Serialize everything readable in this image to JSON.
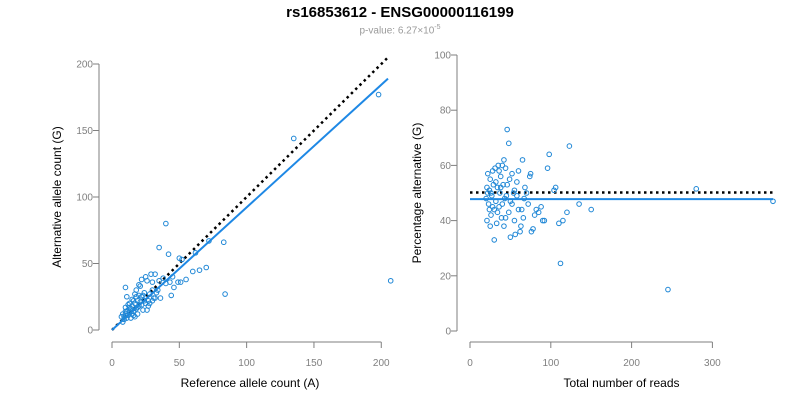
{
  "title": "rs16853612 - ENSG00000116199",
  "subtitle": {
    "prefix": "p-value: ",
    "mantissa": "6.27",
    "times": "×",
    "base": "10",
    "exponent": "-5"
  },
  "chart_data": [
    {
      "type": "scatter",
      "name": "allele-count-scatter",
      "xlabel": "Reference allele count (A)",
      "ylabel": "Alternative allele count (G)",
      "xlim": [
        0,
        205
      ],
      "ylim": [
        0,
        200
      ],
      "xticks": [
        0,
        50,
        100,
        150,
        200
      ],
      "yticks": [
        0,
        50,
        100,
        150,
        200
      ],
      "grid": false,
      "point_color": "#1f87d6",
      "fit_line": {
        "color": "#1e88e5",
        "x": [
          0,
          205
        ],
        "y": [
          0,
          189
        ]
      },
      "reference_line": {
        "color": "#000000",
        "style": "dotted",
        "x": [
          0,
          205
        ],
        "y": [
          0,
          205
        ]
      },
      "points": [
        [
          207,
          37
        ],
        [
          198,
          177
        ],
        [
          135,
          144
        ],
        [
          84,
          27
        ],
        [
          83,
          66
        ],
        [
          72,
          67
        ],
        [
          70,
          47
        ],
        [
          65,
          45
        ],
        [
          60,
          44
        ],
        [
          55,
          38
        ],
        [
          51,
          36
        ],
        [
          49,
          36
        ],
        [
          46,
          32
        ],
        [
          44,
          26
        ],
        [
          43,
          36
        ],
        [
          42,
          57
        ],
        [
          40,
          80
        ],
        [
          35,
          62
        ],
        [
          35,
          37
        ],
        [
          33,
          28
        ],
        [
          32,
          24
        ],
        [
          31,
          24
        ],
        [
          30,
          30
        ],
        [
          29,
          42
        ],
        [
          28,
          27
        ],
        [
          27,
          22
        ],
        [
          26,
          37
        ],
        [
          25,
          40
        ],
        [
          25,
          20
        ],
        [
          24,
          28
        ],
        [
          23,
          26
        ],
        [
          23,
          15
        ],
        [
          22,
          38
        ],
        [
          22,
          25
        ],
        [
          21,
          21
        ],
        [
          21,
          33
        ],
        [
          20,
          34
        ],
        [
          20,
          18
        ],
        [
          19,
          22
        ],
        [
          19,
          12
        ],
        [
          18,
          30
        ],
        [
          18,
          16
        ],
        [
          18,
          25
        ],
        [
          17,
          10
        ],
        [
          17,
          20
        ],
        [
          16,
          14
        ],
        [
          16,
          22
        ],
        [
          15,
          12
        ],
        [
          15,
          18
        ],
        [
          14,
          16
        ],
        [
          14,
          9
        ],
        [
          13,
          13
        ],
        [
          13,
          20
        ],
        [
          12,
          11
        ],
        [
          12,
          15
        ],
        [
          11,
          25
        ],
        [
          11,
          9
        ],
        [
          10,
          14
        ],
        [
          10,
          12
        ],
        [
          10,
          32
        ],
        [
          10,
          17
        ],
        [
          9,
          10
        ],
        [
          9,
          8
        ],
        [
          8,
          12
        ],
        [
          8,
          6
        ],
        [
          7,
          10
        ],
        [
          30,
          36
        ],
        [
          36,
          24
        ],
        [
          38,
          39
        ],
        [
          40,
          35
        ],
        [
          50,
          54
        ],
        [
          52,
          53
        ],
        [
          27,
          18
        ],
        [
          24,
          22
        ],
        [
          26,
          15
        ],
        [
          28,
          20
        ],
        [
          15,
          23
        ],
        [
          17,
          27
        ],
        [
          20,
          26
        ],
        [
          34,
          30
        ],
        [
          45,
          40
        ],
        [
          62,
          58
        ],
        [
          32,
          42
        ],
        [
          30,
          22
        ],
        [
          13,
          17
        ],
        [
          11,
          14
        ],
        [
          16,
          11
        ],
        [
          19,
          17
        ],
        [
          22,
          19
        ],
        [
          12,
          19
        ]
      ]
    },
    {
      "type": "scatter",
      "name": "percentage-alternative-scatter",
      "xlabel": "Total number of reads",
      "ylabel": "Percentage alternative (G)",
      "xlim": [
        0,
        375
      ],
      "ylim": [
        0,
        100
      ],
      "xticks": [
        0,
        100,
        200,
        300
      ],
      "yticks": [
        0,
        20,
        40,
        60,
        80,
        100
      ],
      "grid": false,
      "point_color": "#1f87d6",
      "fit_line": {
        "color": "#1e88e5",
        "x": [
          0,
          375
        ],
        "y": [
          47.8,
          47.8
        ]
      },
      "reference_line": {
        "color": "#000000",
        "style": "dotted",
        "x": [
          0,
          375
        ],
        "y": [
          50.2,
          50.2
        ]
      },
      "points": [
        [
          375,
          47
        ],
        [
          280,
          51.5
        ],
        [
          245,
          15
        ],
        [
          150,
          44
        ],
        [
          135,
          46
        ],
        [
          123,
          67
        ],
        [
          120,
          43
        ],
        [
          115,
          40
        ],
        [
          112,
          24.5
        ],
        [
          110,
          39
        ],
        [
          106,
          52
        ],
        [
          104,
          51
        ],
        [
          98,
          64
        ],
        [
          96,
          59
        ],
        [
          92,
          40
        ],
        [
          90,
          40
        ],
        [
          88,
          45
        ],
        [
          85,
          43
        ],
        [
          82,
          44
        ],
        [
          80,
          42
        ],
        [
          78,
          37
        ],
        [
          76,
          36
        ],
        [
          75,
          57
        ],
        [
          74,
          56
        ],
        [
          72,
          46
        ],
        [
          70,
          50
        ],
        [
          68,
          52
        ],
        [
          66,
          41
        ],
        [
          65,
          62
        ],
        [
          64,
          44
        ],
        [
          63,
          38
        ],
        [
          62,
          36
        ],
        [
          60,
          44
        ],
        [
          58,
          49
        ],
        [
          56,
          35
        ],
        [
          55,
          51
        ],
        [
          54,
          50
        ],
        [
          52,
          57
        ],
        [
          50,
          34
        ],
        [
          50,
          47
        ],
        [
          49,
          55
        ],
        [
          48,
          68
        ],
        [
          46,
          73
        ],
        [
          45,
          49
        ],
        [
          44,
          59
        ],
        [
          43,
          48
        ],
        [
          42,
          38
        ],
        [
          41,
          53
        ],
        [
          40,
          60
        ],
        [
          39,
          41
        ],
        [
          38,
          56
        ],
        [
          37,
          50
        ],
        [
          36,
          45
        ],
        [
          35,
          60
        ],
        [
          34,
          52
        ],
        [
          33,
          39
        ],
        [
          32,
          47
        ],
        [
          31,
          59
        ],
        [
          30,
          44
        ],
        [
          30,
          33
        ],
        [
          29,
          53
        ],
        [
          28,
          58
        ],
        [
          27,
          49
        ],
        [
          26,
          42
        ],
        [
          25,
          55
        ],
        [
          25,
          38
        ],
        [
          24,
          51
        ],
        [
          23,
          46
        ],
        [
          22,
          57
        ],
        [
          21,
          40
        ],
        [
          21,
          52
        ],
        [
          20,
          48
        ],
        [
          60,
          58
        ],
        [
          58,
          54
        ],
        [
          55,
          40
        ],
        [
          52,
          46
        ],
        [
          48,
          43
        ],
        [
          46,
          53
        ],
        [
          44,
          41
        ],
        [
          42,
          62
        ],
        [
          40,
          46
        ],
        [
          38,
          52
        ],
        [
          36,
          58
        ],
        [
          34,
          43
        ],
        [
          32,
          54
        ],
        [
          28,
          45
        ],
        [
          26,
          50
        ],
        [
          24,
          44
        ],
        [
          22,
          50
        ],
        [
          67,
          48
        ]
      ]
    }
  ]
}
